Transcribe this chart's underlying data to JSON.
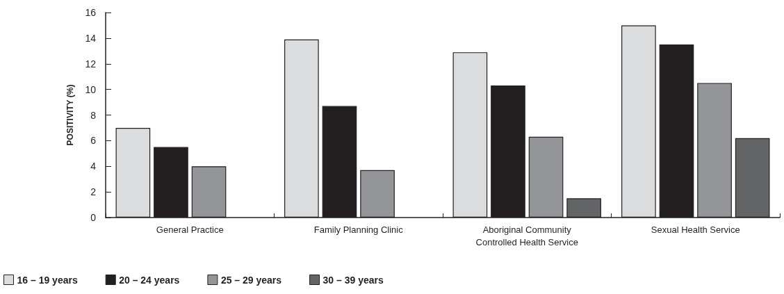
{
  "chart_data": {
    "type": "bar",
    "ylabel": "POSITIVITY (%)",
    "categories": [
      "General Practice",
      "Family Planning Clinic",
      "Aboriginal Community\nControlled Health Service",
      "Sexual Health Service"
    ],
    "series": [
      {
        "name": "16 – 19 years",
        "color": "#dbdcde",
        "values": [
          7.0,
          13.9,
          12.9,
          15.0
        ]
      },
      {
        "name": "20 – 24 years",
        "color": "#231f20",
        "values": [
          5.5,
          8.7,
          10.3,
          13.5
        ]
      },
      {
        "name": "25 – 29 years",
        "color": "#939598",
        "values": [
          4.0,
          3.7,
          6.3,
          10.5
        ]
      },
      {
        "name": "30 – 39 years",
        "color": "#636466",
        "values": [
          null,
          null,
          1.5,
          6.2
        ]
      }
    ],
    "ylim": [
      0,
      16
    ],
    "yticks": [
      0,
      2,
      4,
      6,
      8,
      10,
      12,
      14,
      16
    ],
    "grid": false,
    "legend": "bottom left"
  }
}
